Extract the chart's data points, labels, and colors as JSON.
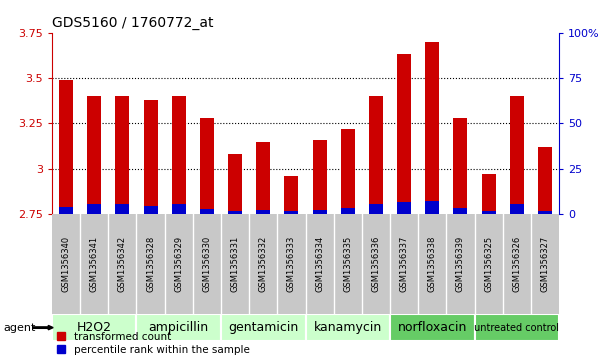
{
  "title": "GDS5160 / 1760772_at",
  "samples": [
    "GSM1356340",
    "GSM1356341",
    "GSM1356342",
    "GSM1356328",
    "GSM1356329",
    "GSM1356330",
    "GSM1356331",
    "GSM1356332",
    "GSM1356333",
    "GSM1356334",
    "GSM1356335",
    "GSM1356336",
    "GSM1356337",
    "GSM1356338",
    "GSM1356339",
    "GSM1356325",
    "GSM1356326",
    "GSM1356327"
  ],
  "transformed_count": [
    3.49,
    3.4,
    3.4,
    3.38,
    3.4,
    3.28,
    3.08,
    3.15,
    2.96,
    3.16,
    3.22,
    3.4,
    3.63,
    3.7,
    3.28,
    2.97,
    3.4,
    3.12
  ],
  "percentile_rank": [
    4.0,
    5.5,
    5.5,
    4.5,
    5.5,
    3.0,
    2.0,
    2.5,
    1.5,
    2.5,
    3.5,
    5.5,
    6.5,
    7.0,
    3.5,
    1.5,
    5.5,
    2.0
  ],
  "bar_bottom": 2.75,
  "ylim": [
    2.75,
    3.75
  ],
  "yticks": [
    2.75,
    3.0,
    3.25,
    3.5,
    3.75
  ],
  "ytick_labels": [
    "2.75",
    "3",
    "3.25",
    "3.5",
    "3.75"
  ],
  "right_yticks": [
    0,
    25,
    50,
    75,
    100
  ],
  "right_ytick_labels": [
    "0",
    "25",
    "50",
    "75",
    "100%"
  ],
  "groups": [
    {
      "label": "H2O2",
      "start": 0,
      "end": 3,
      "color": "#ccffcc"
    },
    {
      "label": "ampicillin",
      "start": 3,
      "end": 6,
      "color": "#ccffcc"
    },
    {
      "label": "gentamicin",
      "start": 6,
      "end": 9,
      "color": "#ccffcc"
    },
    {
      "label": "kanamycin",
      "start": 9,
      "end": 12,
      "color": "#ccffcc"
    },
    {
      "label": "norfloxacin",
      "start": 12,
      "end": 15,
      "color": "#66cc66"
    },
    {
      "label": "untreated control",
      "start": 15,
      "end": 18,
      "color": "#66cc66"
    }
  ],
  "agent_label": "agent",
  "red_color": "#cc0000",
  "blue_color": "#0000cc",
  "bg_color": "#c8c8c8",
  "plot_bg": "#ffffff",
  "grid_color": "#000000",
  "left_axis_color": "#cc0000",
  "right_axis_color": "#0000cc",
  "legend_red": "transformed count",
  "legend_blue": "percentile rank within the sample",
  "bar_width": 0.5
}
